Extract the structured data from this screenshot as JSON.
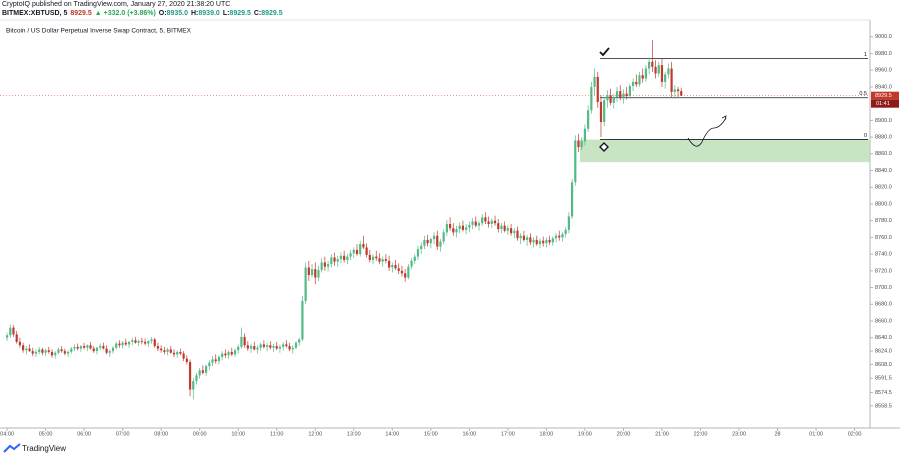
{
  "header": {
    "published": "CryptoIQ published on TradingView.com, January 27, 2020 21:38:20 UTC",
    "quote": [
      {
        "text": "BITMEX:XBTUSD, 5",
        "color": "#131722"
      },
      {
        "text": "8929.5",
        "color": "#c0392b"
      },
      {
        "text": "▲ +332.0 (+3.86%)",
        "color": "#26a65b"
      },
      {
        "text": "O:",
        "color": "#131722"
      },
      {
        "text": "8935.0",
        "color": "#1d9a8a"
      },
      {
        "text": "H:",
        "color": "#131722"
      },
      {
        "text": "8939.0",
        "color": "#1d9a8a"
      },
      {
        "text": "L:",
        "color": "#131722"
      },
      {
        "text": "8929.5",
        "color": "#1d9a8a"
      },
      {
        "text": "C:",
        "color": "#131722"
      },
      {
        "text": "8929.5",
        "color": "#1d9a8a"
      }
    ]
  },
  "chart_data": {
    "type": "candlestick",
    "title": "Bitcoin / US Dollar Perpetual Inverse Swap Contract, 5, BITMEX",
    "up_color": "#53b987",
    "down_color": "#c0392b",
    "ylim": [
      8532,
      9032
    ],
    "xlim": [
      -2.2,
      268.8
    ],
    "yticks": [
      {
        "value": 9000,
        "label": "9000.0"
      },
      {
        "value": 8980,
        "label": "8980.0"
      },
      {
        "value": 8960,
        "label": "8960.0"
      },
      {
        "value": 8940,
        "label": "8940.0"
      },
      {
        "value": 8900,
        "label": "8900.0"
      },
      {
        "value": 8880,
        "label": "8880.0"
      },
      {
        "value": 8860,
        "label": "8860.0"
      },
      {
        "value": 8840,
        "label": "8840.0"
      },
      {
        "value": 8820,
        "label": "8820.0"
      },
      {
        "value": 8800,
        "label": "8800.0"
      },
      {
        "value": 8780,
        "label": "8780.0"
      },
      {
        "value": 8760,
        "label": "8760.0"
      },
      {
        "value": 8740,
        "label": "8740.0"
      },
      {
        "value": 8720,
        "label": "8720.0"
      },
      {
        "value": 8700,
        "label": "8700.0"
      },
      {
        "value": 8680,
        "label": "8680.0"
      },
      {
        "value": 8660,
        "label": "8660.0"
      },
      {
        "value": 8640,
        "label": "8640.0"
      },
      {
        "value": 8624,
        "label": "8624.0"
      },
      {
        "value": 8608,
        "label": "8608.0"
      },
      {
        "value": 8591.5,
        "label": "8591.5"
      },
      {
        "value": 8574.5,
        "label": "8574.5"
      },
      {
        "value": 8558.5,
        "label": "8558.5"
      }
    ],
    "xticks": [
      {
        "value": 0,
        "label": "04:00"
      },
      {
        "value": 12,
        "label": "05:00"
      },
      {
        "value": 24,
        "label": "06:00"
      },
      {
        "value": 36,
        "label": "07:00"
      },
      {
        "value": 48,
        "label": "08:00"
      },
      {
        "value": 60,
        "label": "09:00"
      },
      {
        "value": 72,
        "label": "10:00"
      },
      {
        "value": 84,
        "label": "11:00"
      },
      {
        "value": 96,
        "label": "12:00"
      },
      {
        "value": 108,
        "label": "13:00"
      },
      {
        "value": 120,
        "label": "14:00"
      },
      {
        "value": 132,
        "label": "15:00"
      },
      {
        "value": 144,
        "label": "16:00"
      },
      {
        "value": 156,
        "label": "17:00"
      },
      {
        "value": 168,
        "label": "18:00"
      },
      {
        "value": 180,
        "label": "19:00"
      },
      {
        "value": 192,
        "label": "20:00"
      },
      {
        "value": 204,
        "label": "21:00"
      },
      {
        "value": 216,
        "label": "22:00"
      },
      {
        "value": 228,
        "label": "23:00"
      },
      {
        "value": 240,
        "label": "28"
      },
      {
        "value": 252,
        "label": "01:00"
      },
      {
        "value": 264,
        "label": "02:00"
      }
    ],
    "levels": [
      {
        "value": 8974,
        "label": "1"
      },
      {
        "value": 8927,
        "label": "0.5"
      },
      {
        "value": 8877,
        "label": "0"
      }
    ],
    "zone": {
      "from": 8877,
      "to": 8850,
      "color": "#b9dfb4"
    },
    "last_price": {
      "value": 8929.5,
      "label": "8929.5",
      "countdown": "01:41"
    },
    "candles": [
      [
        8640,
        8646,
        8636,
        8643
      ],
      [
        8643,
        8656,
        8640,
        8652
      ],
      [
        8652,
        8655,
        8641,
        8644
      ],
      [
        8644,
        8648,
        8633,
        8635
      ],
      [
        8635,
        8640,
        8628,
        8631
      ],
      [
        8631,
        8634,
        8622,
        8625
      ],
      [
        8625,
        8630,
        8620,
        8627
      ],
      [
        8627,
        8632,
        8623,
        8624
      ],
      [
        8624,
        8628,
        8618,
        8621
      ],
      [
        8621,
        8626,
        8617,
        8623
      ],
      [
        8623,
        8629,
        8620,
        8626
      ],
      [
        8626,
        8628,
        8619,
        8622
      ],
      [
        8622,
        8627,
        8618,
        8625
      ],
      [
        8625,
        8629,
        8621,
        8623
      ],
      [
        8623,
        8626,
        8616,
        8619
      ],
      [
        8619,
        8624,
        8615,
        8622
      ],
      [
        8622,
        8628,
        8620,
        8626
      ],
      [
        8626,
        8630,
        8622,
        8624
      ],
      [
        8624,
        8627,
        8619,
        8621
      ],
      [
        8621,
        8625,
        8617,
        8623
      ],
      [
        8623,
        8629,
        8621,
        8627
      ],
      [
        8627,
        8632,
        8624,
        8629
      ],
      [
        8629,
        8633,
        8625,
        8627
      ],
      [
        8627,
        8631,
        8623,
        8630
      ],
      [
        8630,
        8634,
        8626,
        8628
      ],
      [
        8628,
        8632,
        8624,
        8631
      ],
      [
        8631,
        8635,
        8626,
        8627
      ],
      [
        8627,
        8630,
        8622,
        8624
      ],
      [
        8624,
        8629,
        8620,
        8628
      ],
      [
        8628,
        8633,
        8625,
        8630
      ],
      [
        8630,
        8634,
        8626,
        8627
      ],
      [
        8627,
        8631,
        8620,
        8622
      ],
      [
        8622,
        8626,
        8617,
        8624
      ],
      [
        8624,
        8630,
        8621,
        8628
      ],
      [
        8628,
        8635,
        8626,
        8633
      ],
      [
        8633,
        8637,
        8628,
        8631
      ],
      [
        8631,
        8636,
        8627,
        8634
      ],
      [
        8634,
        8639,
        8630,
        8632
      ],
      [
        8632,
        8636,
        8628,
        8635
      ],
      [
        8635,
        8640,
        8631,
        8637
      ],
      [
        8637,
        8641,
        8633,
        8634
      ],
      [
        8634,
        8638,
        8630,
        8636
      ],
      [
        8636,
        8640,
        8632,
        8635
      ],
      [
        8635,
        8639,
        8631,
        8633
      ],
      [
        8633,
        8637,
        8629,
        8636
      ],
      [
        8636,
        8641,
        8633,
        8638
      ],
      [
        8638,
        8640,
        8628,
        8630
      ],
      [
        8630,
        8634,
        8624,
        8627
      ],
      [
        8627,
        8631,
        8622,
        8625
      ],
      [
        8625,
        8629,
        8620,
        8623
      ],
      [
        8623,
        8628,
        8619,
        8626
      ],
      [
        8626,
        8630,
        8621,
        8622
      ],
      [
        8622,
        8626,
        8617,
        8620
      ],
      [
        8620,
        8625,
        8616,
        8623
      ],
      [
        8623,
        8627,
        8619,
        8621
      ],
      [
        8621,
        8624,
        8612,
        8615
      ],
      [
        8615,
        8619,
        8608,
        8611
      ],
      [
        8611,
        8614,
        8570,
        8578
      ],
      [
        8578,
        8592,
        8566,
        8588
      ],
      [
        8588,
        8598,
        8584,
        8595
      ],
      [
        8595,
        8604,
        8591,
        8601
      ],
      [
        8601,
        8607,
        8596,
        8598
      ],
      [
        8598,
        8608,
        8594,
        8606
      ],
      [
        8606,
        8613,
        8601,
        8610
      ],
      [
        8610,
        8618,
        8606,
        8614
      ],
      [
        8614,
        8620,
        8609,
        8612
      ],
      [
        8612,
        8619,
        8608,
        8617
      ],
      [
        8617,
        8624,
        8613,
        8621
      ],
      [
        8621,
        8626,
        8616,
        8619
      ],
      [
        8619,
        8625,
        8615,
        8623
      ],
      [
        8623,
        8628,
        8618,
        8620
      ],
      [
        8620,
        8627,
        8617,
        8625
      ],
      [
        8625,
        8632,
        8621,
        8629
      ],
      [
        8629,
        8652,
        8627,
        8641
      ],
      [
        8641,
        8645,
        8628,
        8631
      ],
      [
        8631,
        8636,
        8624,
        8627
      ],
      [
        8627,
        8633,
        8622,
        8630
      ],
      [
        8630,
        8635,
        8625,
        8626
      ],
      [
        8626,
        8631,
        8621,
        8628
      ],
      [
        8628,
        8634,
        8624,
        8632
      ],
      [
        8632,
        8637,
        8627,
        8629
      ],
      [
        8629,
        8634,
        8624,
        8631
      ],
      [
        8631,
        8636,
        8626,
        8628
      ],
      [
        8628,
        8633,
        8623,
        8630
      ],
      [
        8630,
        8635,
        8625,
        8627
      ],
      [
        8627,
        8632,
        8622,
        8629
      ],
      [
        8629,
        8635,
        8625,
        8632
      ],
      [
        8632,
        8637,
        8628,
        8630
      ],
      [
        8630,
        8634,
        8624,
        8626
      ],
      [
        8626,
        8631,
        8621,
        8628
      ],
      [
        8628,
        8636,
        8626,
        8634
      ],
      [
        8634,
        8640,
        8630,
        8638
      ],
      [
        8638,
        8690,
        8636,
        8684
      ],
      [
        8684,
        8730,
        8680,
        8724
      ],
      [
        8724,
        8732,
        8708,
        8715
      ],
      [
        8715,
        8728,
        8712,
        8722
      ],
      [
        8722,
        8730,
        8704,
        8712
      ],
      [
        8712,
        8726,
        8708,
        8721
      ],
      [
        8721,
        8735,
        8718,
        8730
      ],
      [
        8730,
        8737,
        8720,
        8725
      ],
      [
        8725,
        8732,
        8719,
        8728
      ],
      [
        8728,
        8740,
        8724,
        8736
      ],
      [
        8736,
        8742,
        8726,
        8731
      ],
      [
        8731,
        8738,
        8725,
        8734
      ],
      [
        8734,
        8742,
        8729,
        8738
      ],
      [
        8738,
        8744,
        8730,
        8733
      ],
      [
        8733,
        8740,
        8728,
        8737
      ],
      [
        8737,
        8745,
        8733,
        8741
      ],
      [
        8741,
        8748,
        8735,
        8745
      ],
      [
        8745,
        8752,
        8738,
        8740
      ],
      [
        8740,
        8756,
        8737,
        8752
      ],
      [
        8752,
        8762,
        8746,
        8748
      ],
      [
        8748,
        8753,
        8736,
        8739
      ],
      [
        8739,
        8745,
        8730,
        8733
      ],
      [
        8733,
        8740,
        8728,
        8737
      ],
      [
        8737,
        8744,
        8732,
        8735
      ],
      [
        8735,
        8741,
        8728,
        8731
      ],
      [
        8731,
        8737,
        8725,
        8734
      ],
      [
        8734,
        8740,
        8729,
        8732
      ],
      [
        8732,
        8738,
        8720,
        8724
      ],
      [
        8724,
        8730,
        8718,
        8727
      ],
      [
        8727,
        8733,
        8721,
        8723
      ],
      [
        8723,
        8729,
        8716,
        8720
      ],
      [
        8720,
        8726,
        8713,
        8717
      ],
      [
        8717,
        8722,
        8707,
        8712
      ],
      [
        8712,
        8728,
        8710,
        8725
      ],
      [
        8725,
        8735,
        8722,
        8732
      ],
      [
        8732,
        8740,
        8728,
        8737
      ],
      [
        8737,
        8750,
        8733,
        8746
      ],
      [
        8746,
        8754,
        8740,
        8750
      ],
      [
        8750,
        8762,
        8746,
        8757
      ],
      [
        8757,
        8763,
        8749,
        8753
      ],
      [
        8753,
        8760,
        8747,
        8758
      ],
      [
        8758,
        8766,
        8752,
        8762
      ],
      [
        8762,
        8768,
        8745,
        8749
      ],
      [
        8749,
        8758,
        8743,
        8755
      ],
      [
        8755,
        8770,
        8752,
        8766
      ],
      [
        8766,
        8781,
        8762,
        8776
      ],
      [
        8776,
        8784,
        8768,
        8771
      ],
      [
        8771,
        8777,
        8762,
        8766
      ],
      [
        8766,
        8774,
        8760,
        8770
      ],
      [
        8770,
        8778,
        8765,
        8774
      ],
      [
        8774,
        8780,
        8767,
        8769
      ],
      [
        8769,
        8776,
        8764,
        8772
      ],
      [
        8772,
        8779,
        8766,
        8775
      ],
      [
        8775,
        8783,
        8770,
        8779
      ],
      [
        8779,
        8785,
        8772,
        8774
      ],
      [
        8774,
        8780,
        8768,
        8777
      ],
      [
        8777,
        8788,
        8774,
        8784
      ],
      [
        8784,
        8790,
        8776,
        8779
      ],
      [
        8779,
        8785,
        8772,
        8776
      ],
      [
        8776,
        8783,
        8771,
        8780
      ],
      [
        8780,
        8786,
        8774,
        8777
      ],
      [
        8777,
        8782,
        8766,
        8770
      ],
      [
        8770,
        8777,
        8765,
        8774
      ],
      [
        8774,
        8779,
        8766,
        8768
      ],
      [
        8768,
        8775,
        8763,
        8771
      ],
      [
        8771,
        8776,
        8762,
        8765
      ],
      [
        8765,
        8771,
        8759,
        8768
      ],
      [
        8768,
        8773,
        8756,
        8759
      ],
      [
        8759,
        8765,
        8752,
        8762
      ],
      [
        8762,
        8768,
        8755,
        8757
      ],
      [
        8757,
        8763,
        8750,
        8760
      ],
      [
        8760,
        8765,
        8751,
        8754
      ],
      [
        8754,
        8760,
        8748,
        8757
      ],
      [
        8757,
        8762,
        8750,
        8752
      ],
      [
        8752,
        8759,
        8747,
        8756
      ],
      [
        8756,
        8761,
        8749,
        8753
      ],
      [
        8753,
        8760,
        8748,
        8757
      ],
      [
        8757,
        8762,
        8751,
        8754
      ],
      [
        8754,
        8761,
        8750,
        8759
      ],
      [
        8759,
        8765,
        8754,
        8762
      ],
      [
        8762,
        8768,
        8756,
        8760
      ],
      [
        8760,
        8766,
        8755,
        8764
      ],
      [
        8764,
        8772,
        8760,
        8769
      ],
      [
        8769,
        8790,
        8765,
        8785
      ],
      [
        8785,
        8830,
        8782,
        8826
      ],
      [
        8826,
        8882,
        8822,
        8876
      ],
      [
        8876,
        8884,
        8862,
        8868
      ],
      [
        8868,
        8880,
        8864,
        8875
      ],
      [
        8875,
        8895,
        8870,
        8890
      ],
      [
        8890,
        8918,
        8886,
        8912
      ],
      [
        8912,
        8946,
        8908,
        8940
      ],
      [
        8940,
        8962,
        8930,
        8952
      ],
      [
        8952,
        8958,
        8915,
        8922
      ],
      [
        8922,
        8930,
        8880,
        8898
      ],
      [
        8898,
        8928,
        8893,
        8924
      ],
      [
        8924,
        8936,
        8915,
        8930
      ],
      [
        8930,
        8938,
        8918,
        8921
      ],
      [
        8921,
        8932,
        8914,
        8928
      ],
      [
        8928,
        8940,
        8922,
        8935
      ],
      [
        8935,
        8942,
        8924,
        8927
      ],
      [
        8927,
        8937,
        8920,
        8932
      ],
      [
        8932,
        8940,
        8925,
        8929
      ],
      [
        8929,
        8944,
        8926,
        8941
      ],
      [
        8941,
        8950,
        8935,
        8946
      ],
      [
        8946,
        8955,
        8940,
        8943
      ],
      [
        8943,
        8958,
        8940,
        8954
      ],
      [
        8954,
        8962,
        8945,
        8950
      ],
      [
        8950,
        8966,
        8946,
        8962
      ],
      [
        8962,
        8975,
        8955,
        8970
      ],
      [
        8970,
        8996,
        8958,
        8964
      ],
      [
        8964,
        8972,
        8950,
        8956
      ],
      [
        8956,
        8970,
        8952,
        8966
      ],
      [
        8966,
        8974,
        8940,
        8946
      ],
      [
        8946,
        8958,
        8938,
        8955
      ],
      [
        8955,
        8968,
        8950,
        8962
      ],
      [
        8962,
        8970,
        8928,
        8934
      ],
      [
        8934,
        8942,
        8926,
        8937
      ],
      [
        8937,
        8940,
        8928,
        8935
      ],
      [
        8935,
        8939,
        8929.5,
        8929.5
      ]
    ]
  },
  "footer": {
    "brand": "TradingView"
  }
}
